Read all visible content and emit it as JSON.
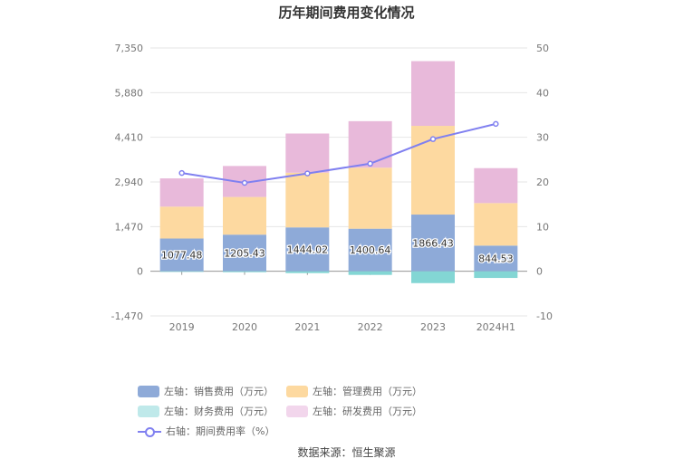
{
  "chart_data": {
    "type": "bar",
    "title": "历年期间费用变化情况",
    "categories": [
      "2019",
      "2020",
      "2021",
      "2022",
      "2023",
      "2024H1"
    ],
    "stacked": true,
    "left_axis": {
      "ylim": [
        -1470,
        7350
      ],
      "ticks": [
        "-1,470",
        "0",
        "1,470",
        "2,940",
        "4,410",
        "5,880",
        "7,350"
      ]
    },
    "right_axis": {
      "ylim": [
        -10,
        50
      ],
      "ticks": [
        "-10",
        "0",
        "10",
        "20",
        "30",
        "40",
        "50"
      ]
    },
    "grid": true,
    "legend_position": "bottom",
    "series": [
      {
        "name": "左轴：销售费用（万元）",
        "axis": "left",
        "type": "bar",
        "color": "#8eaad8",
        "values": [
          1077.48,
          1205.43,
          1444.02,
          1400.64,
          1866.43,
          844.53
        ]
      },
      {
        "name": "左轴：管理费用（万元）",
        "axis": "left",
        "type": "bar",
        "color": "#fdd9a0",
        "values": [
          1050,
          1240,
          1800,
          2010,
          2920,
          1400
        ]
      },
      {
        "name": "左轴：财务费用（万元）",
        "axis": "left",
        "type": "bar",
        "color": "#83d6d4",
        "values": [
          -20,
          -30,
          -60,
          -120,
          -390,
          -220
        ]
      },
      {
        "name": "左轴：研发费用（万元）",
        "axis": "left",
        "type": "bar",
        "color": "#e8b9da",
        "values": [
          930,
          1020,
          1290,
          1530,
          2130,
          1150
        ]
      },
      {
        "name": "右轴：期间费用率（%）",
        "axis": "right",
        "type": "line",
        "color": "#8080f0",
        "values": [
          22.0,
          19.8,
          21.9,
          24.1,
          29.6,
          33.0
        ]
      }
    ],
    "data_labels_series": "左轴：销售费用（万元）"
  },
  "source_label": "数据来源：恒生聚源"
}
